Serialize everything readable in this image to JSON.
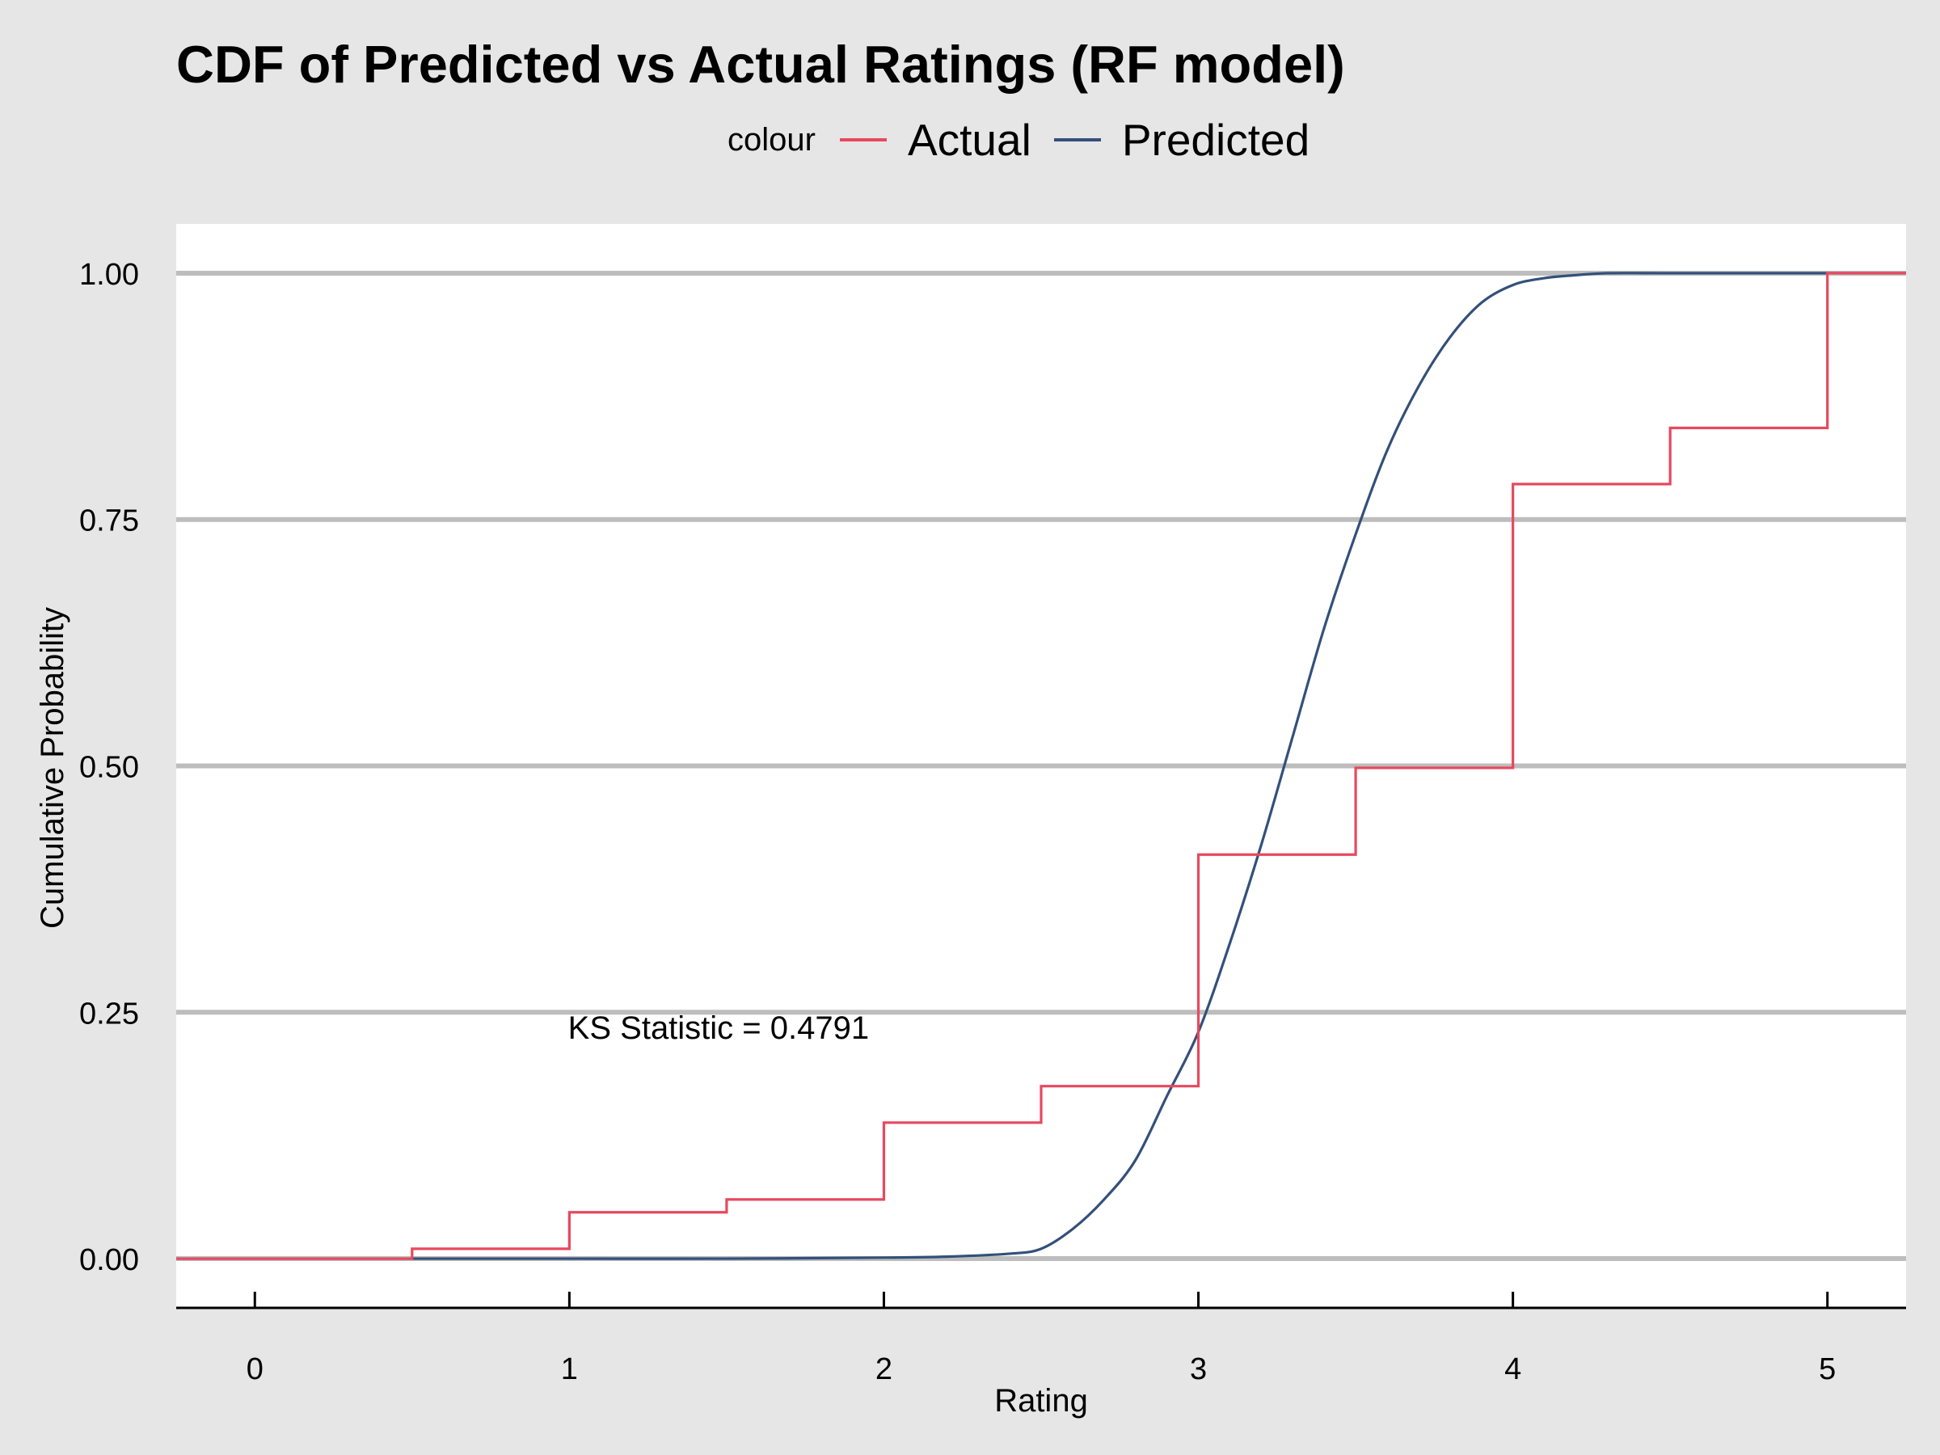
{
  "chart_data": {
    "type": "line",
    "title": "CDF of Predicted vs Actual Ratings (RF model)",
    "xlabel": "Rating",
    "ylabel": "Cumulative Probability",
    "xlim": [
      -0.25,
      5.25
    ],
    "ylim": [
      -0.05,
      1.05
    ],
    "x_ticks": [
      0,
      1,
      2,
      3,
      4,
      5
    ],
    "x_tick_labels": [
      "0",
      "1",
      "2",
      "3",
      "4",
      "5"
    ],
    "y_ticks": [
      0,
      0.25,
      0.5,
      0.75,
      1
    ],
    "y_tick_labels": [
      "0.00",
      "0.25",
      "0.50",
      "0.75",
      "1.00"
    ],
    "grid": "horizontal",
    "legend": {
      "title": "colour",
      "position": "top",
      "entries": [
        {
          "label": "Actual",
          "color": "#e8485f"
        },
        {
          "label": "Predicted",
          "color": "#33507a"
        }
      ]
    },
    "annotation": {
      "text": "KS Statistic = 0.4791",
      "x": 1.5,
      "y": 0.2
    },
    "series": [
      {
        "name": "Actual",
        "color": "#e8485f",
        "style": "step",
        "x": [
          -0.25,
          0.5,
          1.0,
          1.5,
          2.0,
          2.5,
          3.0,
          3.5,
          4.0,
          4.5,
          5.0,
          5.25
        ],
        "y": [
          0.0,
          0.01,
          0.047,
          0.06,
          0.138,
          0.175,
          0.41,
          0.498,
          0.786,
          0.843,
          1.0,
          1.0
        ]
      },
      {
        "name": "Predicted",
        "color": "#33507a",
        "style": "smooth",
        "x": [
          0.5,
          1.0,
          1.5,
          2.0,
          2.2,
          2.4,
          2.5,
          2.6,
          2.7,
          2.8,
          2.9,
          3.0,
          3.1,
          3.2,
          3.3,
          3.4,
          3.5,
          3.6,
          3.7,
          3.8,
          3.9,
          4.0,
          4.1,
          4.2,
          4.3,
          4.5,
          5.0,
          5.25
        ],
        "y": [
          0.0,
          0.0,
          0.0,
          0.001,
          0.002,
          0.005,
          0.01,
          0.03,
          0.06,
          0.1,
          0.165,
          0.23,
          0.32,
          0.42,
          0.53,
          0.64,
          0.735,
          0.82,
          0.885,
          0.935,
          0.97,
          0.988,
          0.995,
          0.998,
          1.0,
          1.0,
          1.0,
          1.0
        ]
      }
    ]
  }
}
